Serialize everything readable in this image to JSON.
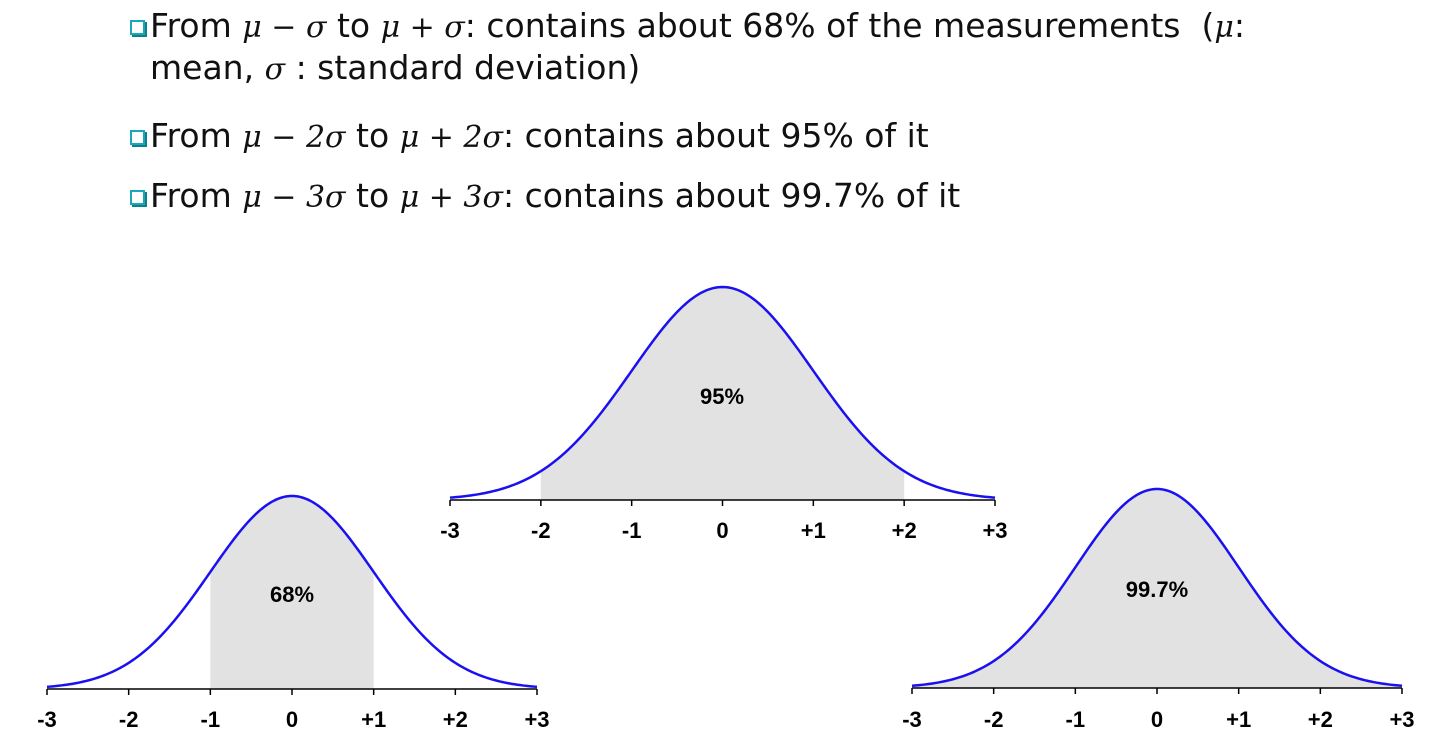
{
  "bullets": {
    "b1": {
      "word_from": "From",
      "lo": "μ − σ",
      "word_to": "to",
      "hi": "μ + σ",
      "text": ": contains about 68% of the measurements",
      "note_open": "(",
      "note_mu": "μ",
      "note_line1": ":",
      "note_line2a": "mean,",
      "note_sigma": "σ",
      "note_line2b": ": standard deviation)"
    },
    "b2": {
      "word_from": "From",
      "lo": "μ − 2σ",
      "word_to": "to",
      "hi": "μ + 2σ",
      "text": ": contains about 95% of it"
    },
    "b3": {
      "word_from": "From",
      "lo": "μ − 3σ",
      "word_to": "to",
      "hi": "μ + 3σ",
      "text": ": contains about 99.7% of it"
    }
  },
  "colors": {
    "curve": "#1a10f0",
    "shade": "#e2e2e2",
    "axis": "#000000",
    "bullet_box": "#1aa8b8"
  },
  "chart_data": [
    {
      "type": "area",
      "distribution": "standard normal",
      "x_ticks": [
        "-3",
        "-2",
        "-1",
        "0",
        "+1",
        "+2",
        "+3"
      ],
      "xlim": [
        -3,
        3
      ],
      "shaded_range": [
        -1,
        1
      ],
      "label": "68%"
    },
    {
      "type": "area",
      "distribution": "standard normal",
      "x_ticks": [
        "-3",
        "-2",
        "-1",
        "0",
        "+1",
        "+2",
        "+3"
      ],
      "xlim": [
        -3,
        3
      ],
      "shaded_range": [
        -2,
        2
      ],
      "label": "95%"
    },
    {
      "type": "area",
      "distribution": "standard normal",
      "x_ticks": [
        "-3",
        "-2",
        "-1",
        "0",
        "+1",
        "+2",
        "+3"
      ],
      "xlim": [
        -3,
        3
      ],
      "shaded_range": [
        -3,
        3
      ],
      "label": "99.7%"
    }
  ]
}
